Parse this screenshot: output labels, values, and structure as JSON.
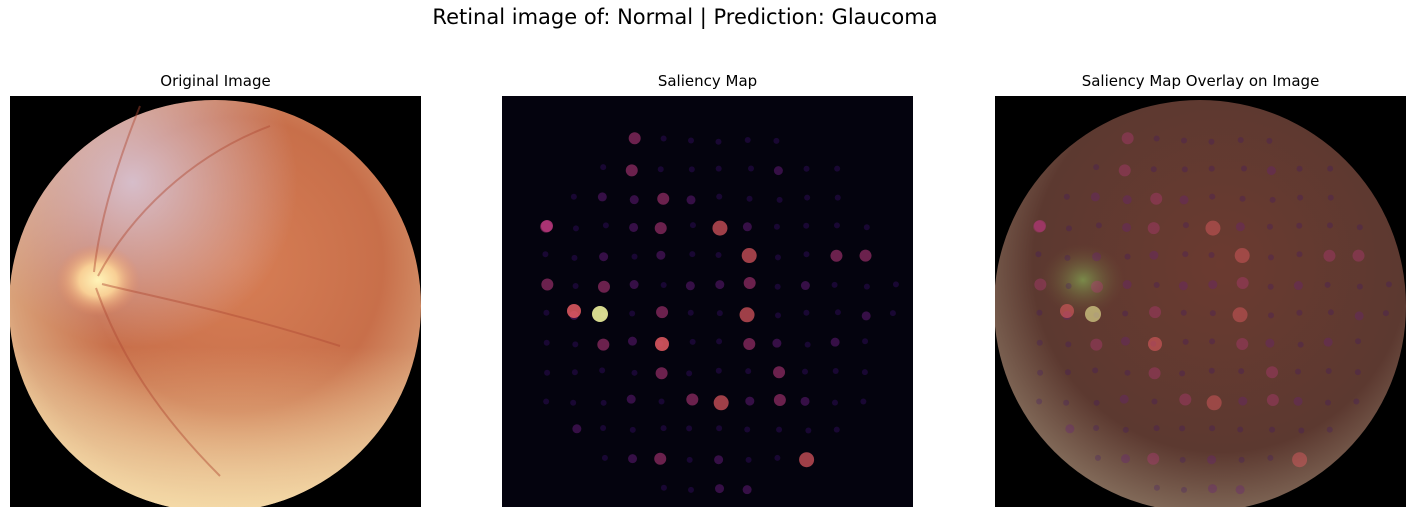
{
  "figure": {
    "suptitle": "Retinal image of: Normal | Prediction: Glaucoma"
  },
  "panels": [
    {
      "title": "Original Image"
    },
    {
      "title": "Saliency Map"
    },
    {
      "title": "Saliency Map Overlay on Image"
    }
  ],
  "colors": {
    "background": "#000000",
    "saliency_bg": "#04030e",
    "fundus_center": "#d98a5e",
    "fundus_edge": "#b85c3c",
    "optic_disc": "#fff2b0",
    "saliency_hot": "#fcffa4",
    "saliency_mid": "#b5367a",
    "saliency_low": "#3b0f70"
  }
}
